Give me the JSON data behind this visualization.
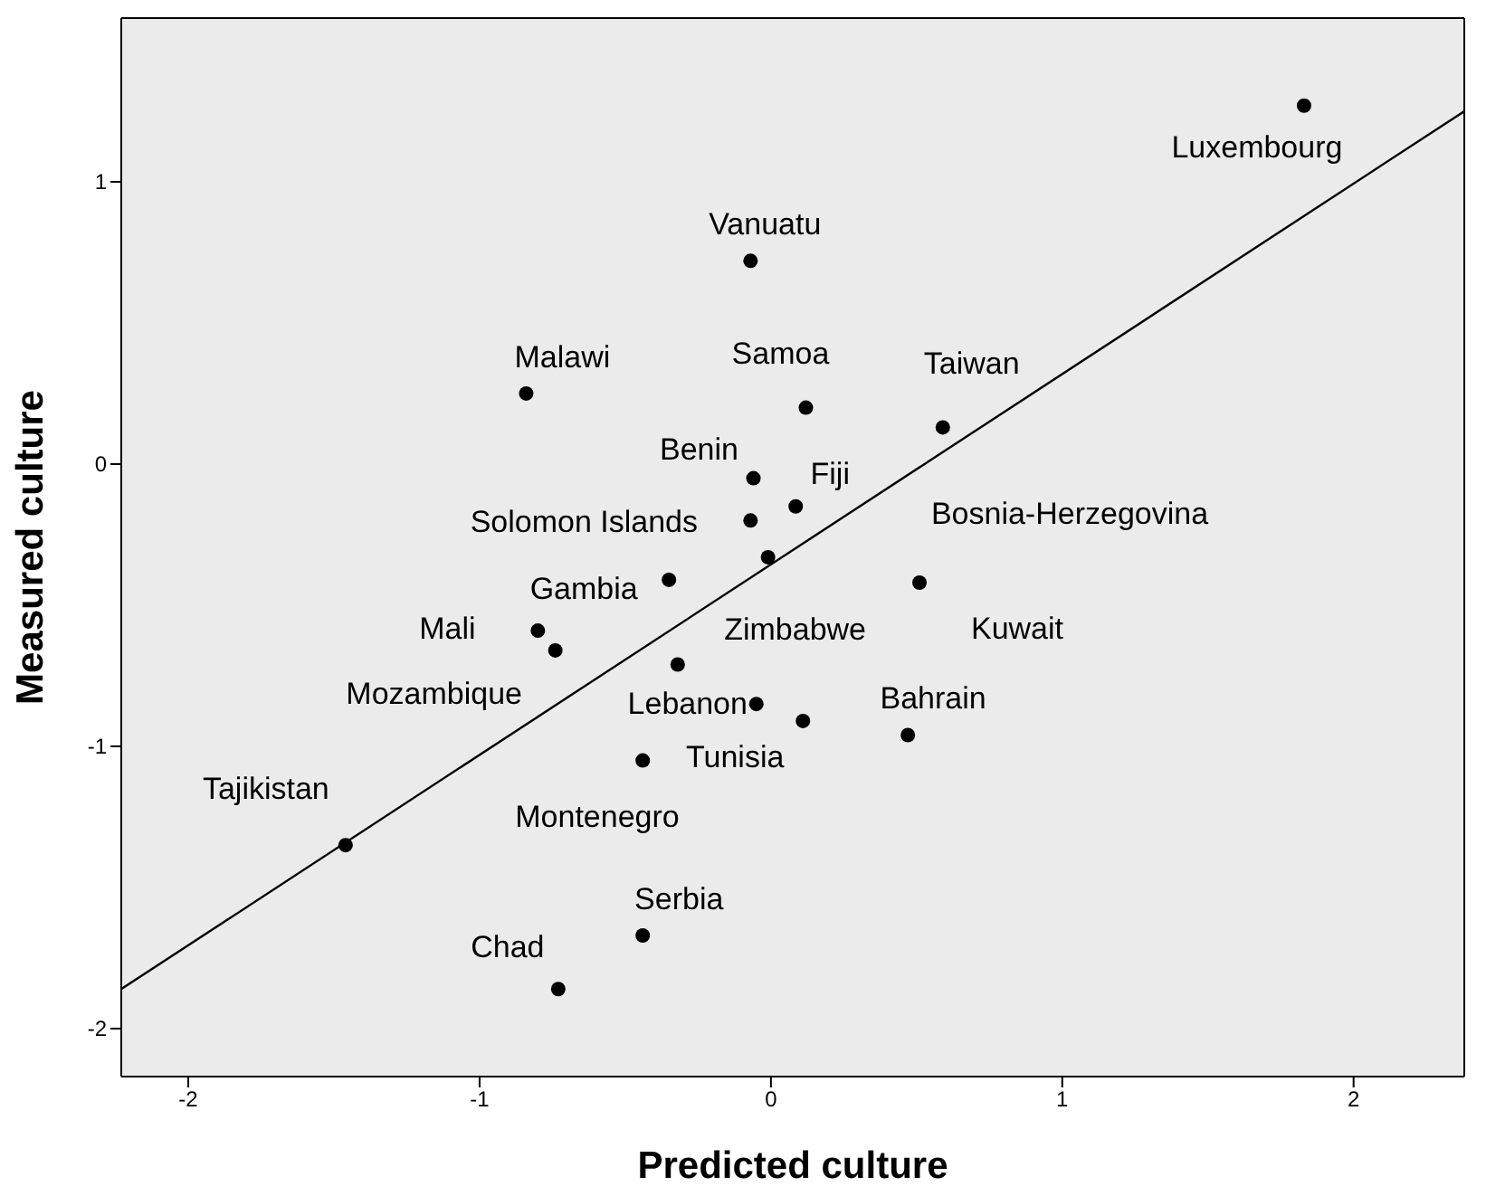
{
  "chart_data": {
    "type": "scatter",
    "xlabel": "Predicted culture",
    "ylabel": "Measured culture",
    "xlim": [
      -2.23,
      2.38
    ],
    "ylim": [
      -2.17,
      1.58
    ],
    "xticks": [
      -2,
      -1,
      0,
      1,
      2
    ],
    "yticks": [
      1,
      0,
      -1,
      -2
    ],
    "legend": false,
    "marker": "circle",
    "series": [
      {
        "color": "#000000",
        "x": [
          1.83,
          -0.07,
          -0.84,
          0.12,
          0.59,
          -0.06,
          0.085,
          -0.07,
          -0.01,
          -0.35,
          -0.8,
          -0.74,
          -0.32,
          -0.05,
          0.51,
          0.11,
          -0.44,
          0.47,
          -1.46,
          -0.44,
          -0.73
        ],
        "values": [
          1.27,
          0.72,
          0.25,
          0.2,
          0.13,
          -0.05,
          -0.15,
          -0.2,
          -0.33,
          -0.41,
          -0.59,
          -0.66,
          -0.71,
          -0.85,
          -0.42,
          -0.91,
          -1.05,
          -0.96,
          -1.35,
          -1.67,
          -1.86
        ]
      },
      {
        "type": "line",
        "marker": "none",
        "color": "#000000",
        "x": [
          -2.23,
          2.38
        ],
        "values": [
          -1.86,
          1.25
        ]
      }
    ],
    "annotations": [
      {
        "text": "Luxembourg",
        "x": 1.83,
        "y": 1.27
      },
      {
        "text": "Vanuatu",
        "x": -0.07,
        "y": 0.72
      },
      {
        "text": "Malawi",
        "x": -0.84,
        "y": 0.25
      },
      {
        "text": "Samoa",
        "x": 0.12,
        "y": 0.2
      },
      {
        "text": "Taiwan",
        "x": 0.59,
        "y": 0.13
      },
      {
        "text": "Benin",
        "x": -0.06,
        "y": -0.05
      },
      {
        "text": "Fiji",
        "x": 0.085,
        "y": -0.15
      },
      {
        "text": "Solomon Islands",
        "x": -0.07,
        "y": -0.2
      },
      {
        "text": "Bosnia-Herzegovina",
        "x": 0.51,
        "y": -0.42
      },
      {
        "text": "Gambia",
        "x": -0.35,
        "y": -0.41
      },
      {
        "text": "Mali",
        "x": -0.8,
        "y": -0.59
      },
      {
        "text": "Mozambique",
        "x": -0.74,
        "y": -0.66
      },
      {
        "text": "Zimbabwe",
        "x": -0.01,
        "y": -0.33
      },
      {
        "text": "Lebanon",
        "x": -0.05,
        "y": -0.85
      },
      "Kuwait",
      "Montenegro",
      {
        "text": "Tunisia",
        "x": -0.44,
        "y": -1.05
      },
      {
        "text": "Bahrain",
        "x": 0.47,
        "y": -0.96
      },
      {
        "text": "Tajikistan",
        "x": -1.46,
        "y": -1.35
      },
      {
        "text": "Serbia",
        "x": -0.44,
        "y": -1.67
      },
      {
        "text": "Chad",
        "x": -0.73,
        "y": -1.86
      }
    ]
  }
}
